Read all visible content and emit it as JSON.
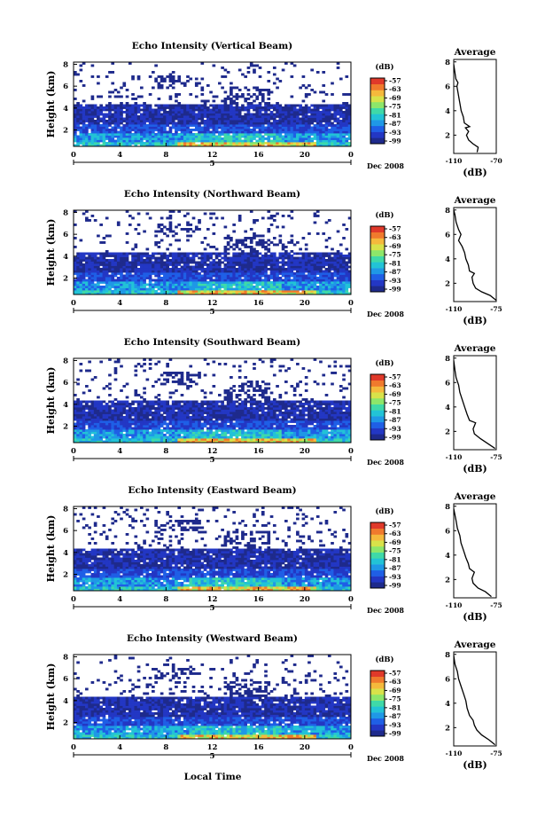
{
  "figure": {
    "xlabel_bottom": "Local Time",
    "month_label": "Dec 2008",
    "day_label": "5"
  },
  "chart_data": [
    {
      "type": "heatmap",
      "title": "Echo Intensity (Vertical Beam)",
      "ylabel": "Height (km)",
      "x_ticks": [
        "0",
        "4",
        "8",
        "12",
        "16",
        "20",
        "0"
      ],
      "xlim": [
        0,
        24
      ],
      "y_ticks": [
        "2",
        "4",
        "6",
        "8"
      ],
      "ylim": [
        0.5,
        8.2
      ],
      "cbar_label": "(dB)",
      "cbar_ticks": [
        "-57",
        "-63",
        "-69",
        "-75",
        "-81",
        "-87",
        "-93",
        "-99"
      ],
      "profile": {
        "title": "Average",
        "xlabel": "(dB)",
        "x_ticks": [
          "-110",
          "-70"
        ],
        "xlim": [
          -110,
          -70
        ],
        "y_ticks": [
          "2",
          "4",
          "6",
          "8"
        ],
        "ylim": [
          0.5,
          8.2
        ],
        "points": [
          [
            -88,
            0.6
          ],
          [
            -87,
            1.0
          ],
          [
            -92,
            1.3
          ],
          [
            -96,
            1.6
          ],
          [
            -98,
            2.0
          ],
          [
            -96,
            2.3
          ],
          [
            -99,
            2.6
          ],
          [
            -95,
            2.7
          ],
          [
            -100,
            3.0
          ],
          [
            -101,
            3.5
          ],
          [
            -103,
            4.0
          ],
          [
            -104,
            4.5
          ],
          [
            -105,
            5.0
          ],
          [
            -106,
            5.5
          ],
          [
            -107,
            6.0
          ],
          [
            -106,
            6.3
          ],
          [
            -108,
            6.6
          ],
          [
            -109,
            7.2
          ],
          [
            -110,
            7.8
          ]
        ]
      }
    },
    {
      "type": "heatmap",
      "title": "Echo Intensity (Northward Beam)",
      "ylabel": "Height (km)",
      "x_ticks": [
        "0",
        "4",
        "8",
        "12",
        "16",
        "20",
        "0"
      ],
      "xlim": [
        0,
        24
      ],
      "y_ticks": [
        "2",
        "4",
        "6",
        "8"
      ],
      "ylim": [
        0.5,
        8.2
      ],
      "cbar_label": "(dB)",
      "cbar_ticks": [
        "-57",
        "-63",
        "-69",
        "-75",
        "-81",
        "-87",
        "-93",
        "-99"
      ],
      "profile": {
        "title": "Average",
        "xlabel": "(dB)",
        "x_ticks": [
          "-110",
          "-75"
        ],
        "xlim": [
          -110,
          -75
        ],
        "y_ticks": [
          "2",
          "4",
          "6",
          "8"
        ],
        "ylim": [
          0.5,
          8.2
        ],
        "points": [
          [
            -75,
            0.6
          ],
          [
            -80,
            1.0
          ],
          [
            -87,
            1.3
          ],
          [
            -92,
            1.6
          ],
          [
            -94,
            2.0
          ],
          [
            -95,
            2.5
          ],
          [
            -93,
            2.8
          ],
          [
            -97,
            3.0
          ],
          [
            -98,
            3.5
          ],
          [
            -100,
            4.0
          ],
          [
            -101,
            4.5
          ],
          [
            -103,
            5.0
          ],
          [
            -106,
            5.5
          ],
          [
            -104,
            6.0
          ],
          [
            -106,
            6.4
          ],
          [
            -108,
            7.0
          ],
          [
            -109,
            7.6
          ],
          [
            -110,
            8.0
          ]
        ]
      }
    },
    {
      "type": "heatmap",
      "title": "Echo Intensity (Southward Beam)",
      "ylabel": "Height (km)",
      "x_ticks": [
        "0",
        "4",
        "8",
        "12",
        "16",
        "20",
        "0"
      ],
      "xlim": [
        0,
        24
      ],
      "y_ticks": [
        "2",
        "4",
        "6",
        "8"
      ],
      "ylim": [
        0.5,
        8.2
      ],
      "cbar_label": "(dB)",
      "cbar_ticks": [
        "-57",
        "-63",
        "-69",
        "-75",
        "-81",
        "-87",
        "-93",
        "-99"
      ],
      "profile": {
        "title": "Average",
        "xlabel": "(dB)",
        "x_ticks": [
          "-110",
          "-75"
        ],
        "xlim": [
          -110,
          -75
        ],
        "y_ticks": [
          "2",
          "4",
          "6",
          "8"
        ],
        "ylim": [
          0.5,
          8.2
        ],
        "points": [
          [
            -76,
            0.6
          ],
          [
            -82,
            1.0
          ],
          [
            -88,
            1.4
          ],
          [
            -93,
            1.8
          ],
          [
            -94,
            2.2
          ],
          [
            -92,
            2.7
          ],
          [
            -97,
            2.9
          ],
          [
            -99,
            3.4
          ],
          [
            -101,
            4.0
          ],
          [
            -103,
            4.6
          ],
          [
            -105,
            5.2
          ],
          [
            -106,
            5.8
          ],
          [
            -108,
            6.4
          ],
          [
            -109,
            7.0
          ],
          [
            -110,
            7.8
          ]
        ]
      }
    },
    {
      "type": "heatmap",
      "title": "Echo Intensity (Eastward Beam)",
      "ylabel": "Height (km)",
      "x_ticks": [
        "0",
        "4",
        "8",
        "12",
        "16",
        "20",
        "0"
      ],
      "xlim": [
        0,
        24
      ],
      "y_ticks": [
        "2",
        "4",
        "6",
        "8"
      ],
      "ylim": [
        0.5,
        8.2
      ],
      "cbar_label": "(dB)",
      "cbar_ticks": [
        "-57",
        "-63",
        "-69",
        "-75",
        "-81",
        "-87",
        "-93",
        "-99"
      ],
      "profile": {
        "title": "Average",
        "xlabel": "(dB)",
        "x_ticks": [
          "-110",
          "-75"
        ],
        "xlim": [
          -110,
          -75
        ],
        "y_ticks": [
          "2",
          "4",
          "6",
          "8"
        ],
        "ylim": [
          0.5,
          8.2
        ],
        "points": [
          [
            -79,
            0.6
          ],
          [
            -84,
            1.0
          ],
          [
            -90,
            1.3
          ],
          [
            -94,
            1.7
          ],
          [
            -95,
            2.1
          ],
          [
            -93,
            2.6
          ],
          [
            -97,
            2.9
          ],
          [
            -98,
            3.3
          ],
          [
            -100,
            3.8
          ],
          [
            -102,
            4.4
          ],
          [
            -104,
            5.0
          ],
          [
            -105,
            5.6
          ],
          [
            -107,
            6.2
          ],
          [
            -108,
            6.8
          ],
          [
            -110,
            7.8
          ]
        ]
      }
    },
    {
      "type": "heatmap",
      "title": "Echo Intensity (Westward Beam)",
      "ylabel": "Height (km)",
      "x_ticks": [
        "0",
        "4",
        "8",
        "12",
        "16",
        "20",
        "0"
      ],
      "xlim": [
        0,
        24
      ],
      "y_ticks": [
        "2",
        "4",
        "6",
        "8"
      ],
      "ylim": [
        0.5,
        8.2
      ],
      "cbar_label": "(dB)",
      "cbar_ticks": [
        "-57",
        "-63",
        "-69",
        "-75",
        "-81",
        "-87",
        "-93",
        "-99"
      ],
      "profile": {
        "title": "Average",
        "xlabel": "(dB)",
        "x_ticks": [
          "-110",
          "-75"
        ],
        "xlim": [
          -110,
          -75
        ],
        "y_ticks": [
          "2",
          "4",
          "6",
          "8"
        ],
        "ylim": [
          0.5,
          8.2
        ],
        "points": [
          [
            -76,
            0.6
          ],
          [
            -81,
            1.0
          ],
          [
            -87,
            1.4
          ],
          [
            -91,
            1.8
          ],
          [
            -93,
            2.2
          ],
          [
            -94,
            2.6
          ],
          [
            -97,
            3.0
          ],
          [
            -99,
            3.6
          ],
          [
            -100,
            4.2
          ],
          [
            -102,
            4.8
          ],
          [
            -104,
            5.4
          ],
          [
            -106,
            6.0
          ],
          [
            -107,
            6.6
          ],
          [
            -109,
            7.2
          ],
          [
            -110,
            7.9
          ]
        ]
      }
    }
  ]
}
